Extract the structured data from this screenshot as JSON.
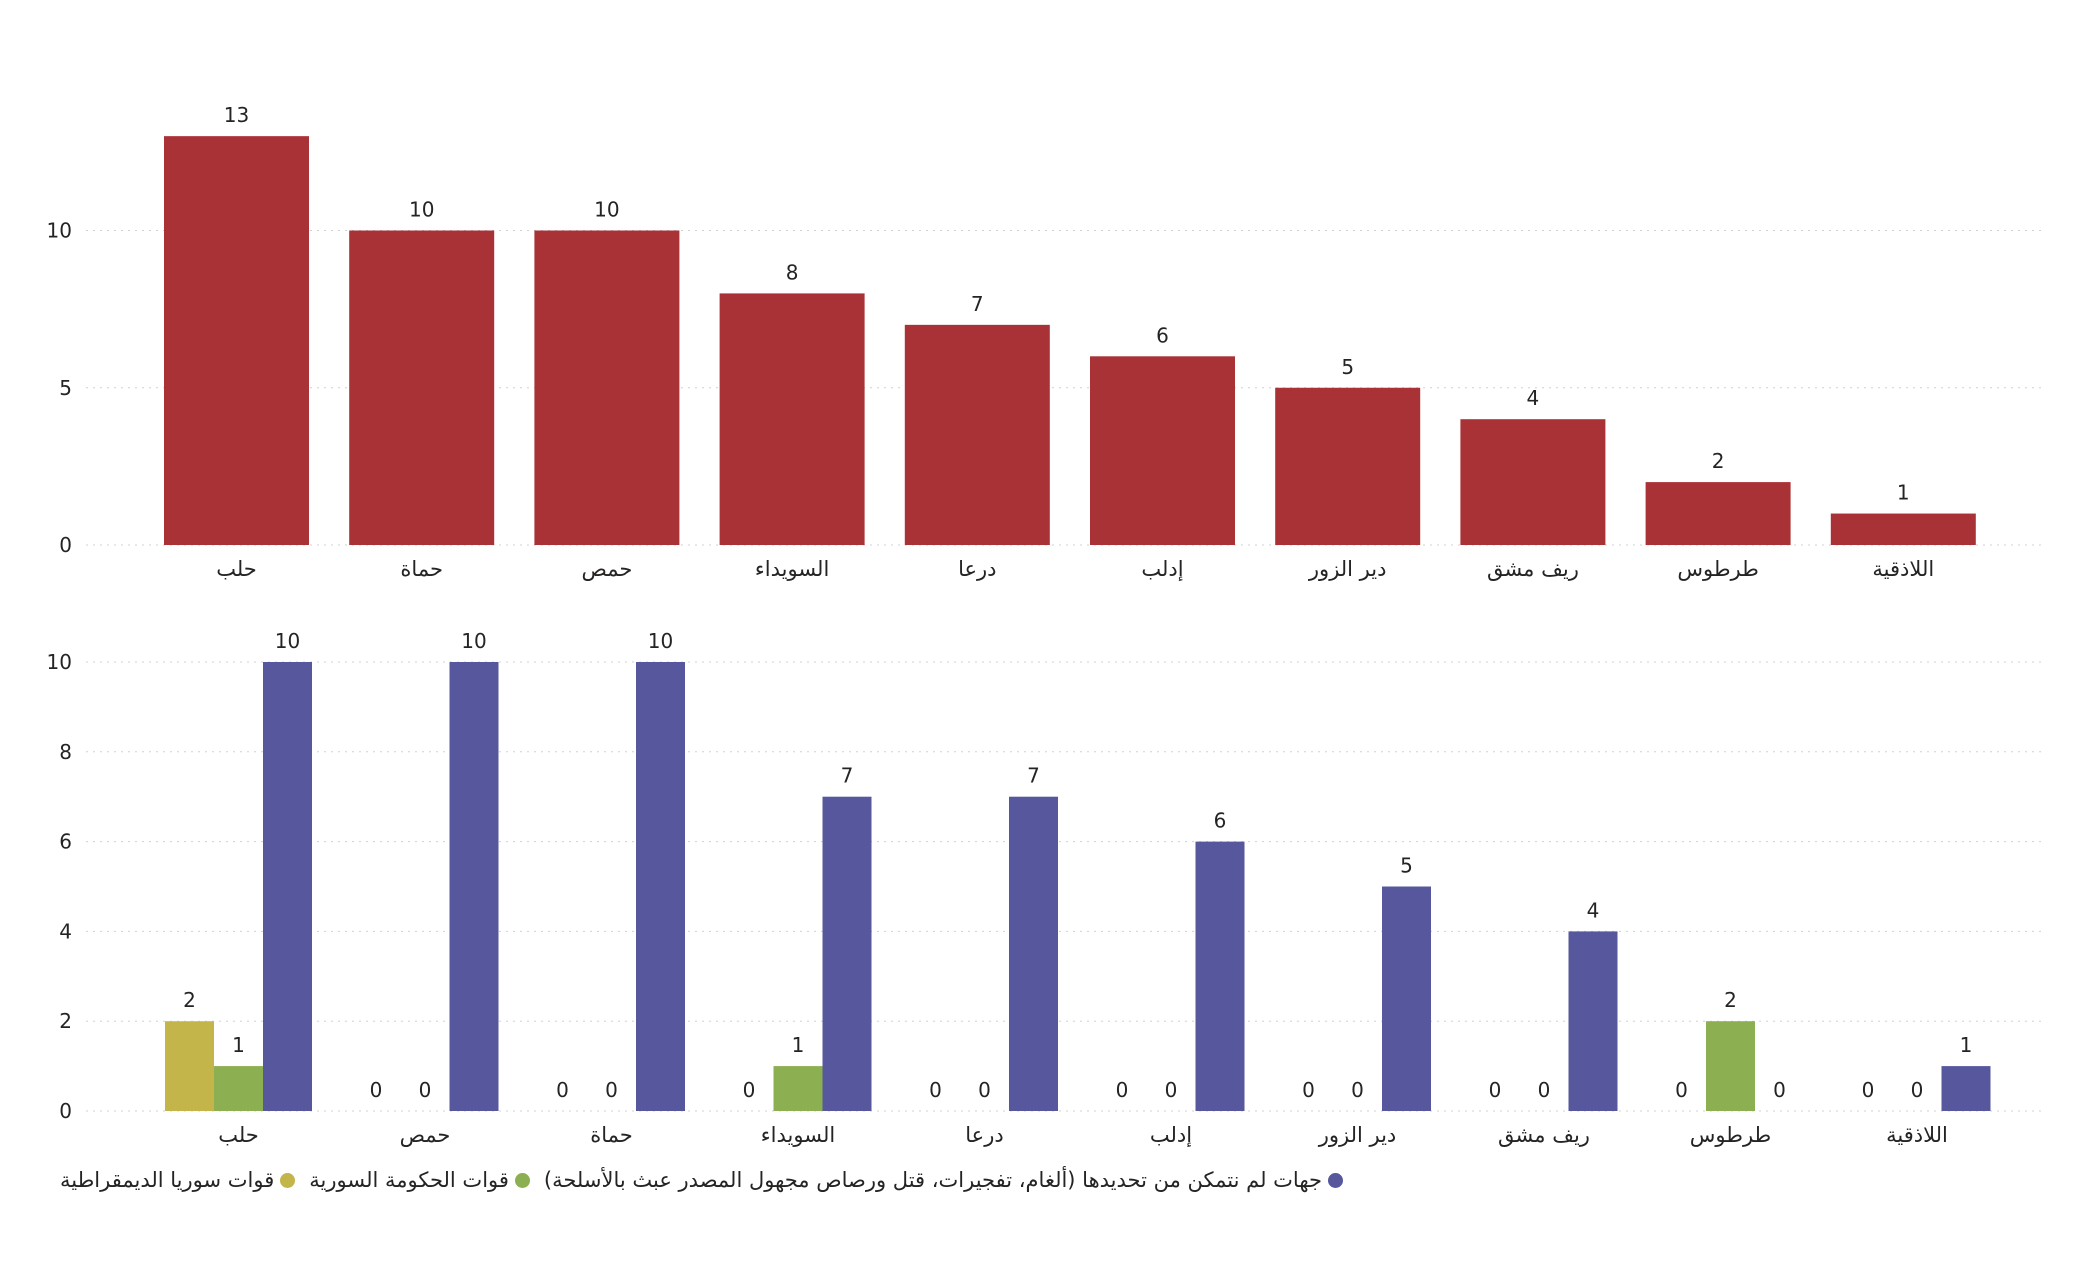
{
  "chart_data": [
    {
      "type": "bar",
      "categories": [
        "حلب",
        "حماة",
        "حمص",
        "السويداء",
        "درعا",
        "إدلب",
        "دير الزور",
        "ريف مشق",
        "طرطوس",
        "اللاذقية"
      ],
      "values": [
        13,
        10,
        10,
        8,
        7,
        6,
        5,
        4,
        2,
        1
      ],
      "ylim": [
        0,
        14
      ],
      "yticks": [
        "0",
        "5",
        "10"
      ],
      "grid": true,
      "color": "#A93236"
    },
    {
      "type": "bar",
      "categories": [
        "حلب",
        "حمص",
        "حماة",
        "السويداء",
        "درعا",
        "إدلب",
        "دير الزور",
        "ريف مشق",
        "طرطوس",
        "اللاذقية"
      ],
      "series": [
        {
          "name": "قوات سوريا الديمقراطية",
          "values": [
            2,
            0,
            0,
            0,
            0,
            0,
            0,
            0,
            0,
            0
          ],
          "color": "#C4B54A"
        },
        {
          "name": "قوات الحكومة السورية",
          "values": [
            1,
            0,
            0,
            1,
            0,
            0,
            0,
            0,
            2,
            0
          ],
          "color": "#8BAF51"
        },
        {
          "name": "جهات لم نتمكن من تحديدها (ألغام، تفجيرات، قتل ورصاص مجهول المصدر عبث بالأسلحة)",
          "values": [
            10,
            10,
            10,
            7,
            7,
            6,
            5,
            4,
            0,
            1
          ],
          "color": "#57579E"
        }
      ],
      "ylim": [
        0,
        10.5
      ],
      "yticks": [
        "0",
        "2",
        "4",
        "6",
        "8",
        "10"
      ],
      "grid": true,
      "legend": "bottom-left"
    }
  ]
}
